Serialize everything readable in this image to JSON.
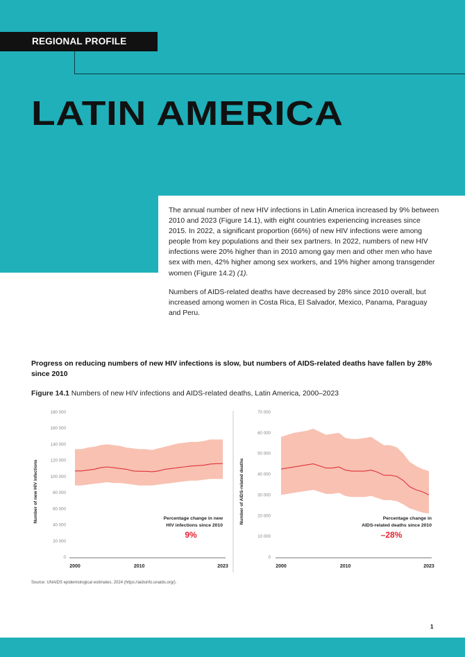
{
  "header": {
    "tag": "REGIONAL PROFILE",
    "title": "LATIN AMERICA"
  },
  "intro": {
    "p1": "The annual number of new HIV infections in Latin America increased by 9% between 2010 and 2023 (Figure 14.1), with eight countries experiencing increases since 2015. In 2022, a significant proportion (66%) of new HIV infections were among people from key populations and their sex partners. In 2022, numbers of new HIV infections were 20% higher than in 2010 among gay men and other men who have sex with men, 42% higher among sex workers, and 19% higher among transgender women (Figure 14.2) ",
    "p1_ref": "(1).",
    "p2": "Numbers of AIDS-related deaths have decreased by 28% since 2010 overall, but increased among women in Costa Rica, El Salvador, Mexico, Panama, Paraguay and Peru."
  },
  "figure": {
    "headline": "Progress on reducing numbers of new HIV infections is slow, but numbers of AIDS-related deaths have fallen by 28% since 2010",
    "caption_label": "Figure 14.1",
    "caption_text": " Numbers of new HIV infections and AIDS-related deaths, Latin America, 2000–2023"
  },
  "chart_data": [
    {
      "type": "line",
      "ylabel": "Number of new HIV infections",
      "ylim": [
        0,
        180000
      ],
      "yticks": [
        0,
        20000,
        40000,
        60000,
        80000,
        100000,
        120000,
        140000,
        160000,
        180000
      ],
      "ytick_labels": [
        "0",
        "20 000",
        "40 000",
        "60 000",
        "80 000",
        "100 000",
        "120 000",
        "140 000",
        "160 000",
        "180 000"
      ],
      "xlim": [
        2000,
        2023
      ],
      "xticks": [
        2000,
        2010,
        2023
      ],
      "x": [
        2000,
        2001,
        2002,
        2003,
        2004,
        2005,
        2006,
        2007,
        2008,
        2009,
        2010,
        2011,
        2012,
        2013,
        2014,
        2015,
        2016,
        2017,
        2018,
        2019,
        2020,
        2021,
        2022,
        2023
      ],
      "series": [
        {
          "values": [
            107000,
            107000,
            108000,
            109000,
            111000,
            112000,
            111000,
            110000,
            109000,
            107000,
            106500,
            106500,
            106000,
            107000,
            109000,
            110000,
            111000,
            112000,
            113000,
            113500,
            114000,
            115500,
            116000,
            116000
          ],
          "upper": [
            134000,
            134000,
            136000,
            137000,
            139000,
            140000,
            139000,
            138000,
            136000,
            135000,
            134000,
            134000,
            133000,
            135000,
            137000,
            139000,
            141000,
            142000,
            143000,
            143000,
            144000,
            146000,
            146000,
            146000
          ],
          "lower": [
            89000,
            89000,
            90000,
            91000,
            92000,
            93000,
            92000,
            92000,
            91000,
            90000,
            89000,
            89000,
            89000,
            90000,
            91000,
            92000,
            93000,
            94000,
            95000,
            95000,
            96000,
            97000,
            97000,
            97000
          ]
        }
      ],
      "annotation": {
        "label_line1": "Percentage change in new",
        "label_line2": "HIV infections since 2010",
        "value": "9%"
      }
    },
    {
      "type": "line",
      "ylabel": "Number of AIDS-related deaths",
      "ylim": [
        0,
        70000
      ],
      "yticks": [
        0,
        10000,
        20000,
        30000,
        40000,
        50000,
        60000,
        70000
      ],
      "ytick_labels": [
        "0",
        "10 000",
        "20 000",
        "30 000",
        "40 000",
        "50 000",
        "60 000",
        "70 000"
      ],
      "xlim": [
        2000,
        2023
      ],
      "xticks": [
        2000,
        2010,
        2023
      ],
      "x": [
        2000,
        2001,
        2002,
        2003,
        2004,
        2005,
        2006,
        2007,
        2008,
        2009,
        2010,
        2011,
        2012,
        2013,
        2014,
        2015,
        2016,
        2017,
        2018,
        2019,
        2020,
        2021,
        2022,
        2023
      ],
      "series": [
        {
          "values": [
            42500,
            43000,
            43500,
            44000,
            44500,
            45000,
            44000,
            43000,
            43000,
            43500,
            42000,
            41500,
            41500,
            41500,
            42000,
            41000,
            39500,
            39500,
            39000,
            37000,
            34000,
            32500,
            31500,
            30000
          ],
          "upper": [
            58000,
            59000,
            60000,
            60500,
            61000,
            62000,
            60500,
            59000,
            59500,
            60000,
            57500,
            57000,
            57000,
            57500,
            58000,
            56000,
            54000,
            54000,
            53000,
            50000,
            46000,
            44000,
            42500,
            41500
          ],
          "lower": [
            30000,
            30500,
            31000,
            31500,
            32000,
            32500,
            31500,
            30500,
            30500,
            31000,
            29500,
            29000,
            29000,
            29000,
            29500,
            28500,
            27500,
            27500,
            27000,
            25500,
            23500,
            22500,
            21500,
            21000
          ]
        }
      ],
      "annotation": {
        "label_line1": "Percentage change in",
        "label_line2": "AIDS-related deaths since 2010",
        "value": "–28%"
      }
    }
  ],
  "colors": {
    "teal": "#1fb0ba",
    "band": "#f8c1b1",
    "line": "#e1303c",
    "accent_red": "#e5202e"
  },
  "source": "Source: UNAIDS epidemiological estimates, 2024 (https://aidsinfo.unaids.org/).",
  "page_number": "1"
}
